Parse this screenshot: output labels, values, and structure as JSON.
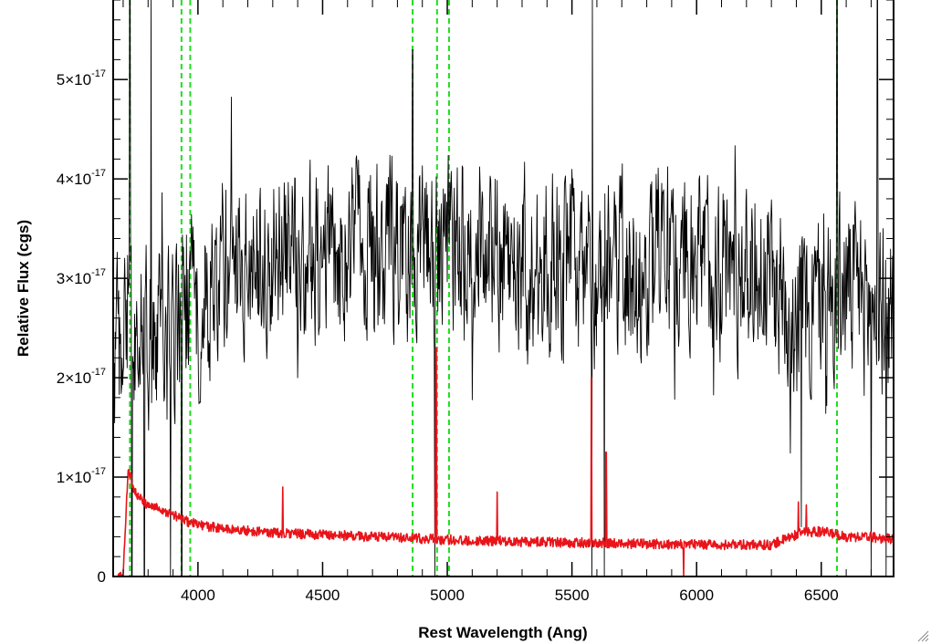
{
  "chart_data": {
    "type": "line",
    "title": "",
    "xlabel": "Rest Wavelength (Ang)",
    "ylabel": "Relative Flux (cgs)",
    "xlim": [
      3660,
      6790
    ],
    "ylim": [
      0,
      5.8e-17
    ],
    "x_ticks": [
      4000,
      4500,
      5000,
      5500,
      6000,
      6500
    ],
    "x_tick_labels": [
      "4000",
      "4500",
      "5000",
      "5500",
      "6000",
      "6500"
    ],
    "y_ticks": [
      {
        "value": 0,
        "label": "0"
      },
      {
        "value": 1e-17,
        "mantissa": "1×10",
        "exponent": "-17"
      },
      {
        "value": 2e-17,
        "mantissa": "2×10",
        "exponent": "-17"
      },
      {
        "value": 3e-17,
        "mantissa": "3×10",
        "exponent": "-17"
      },
      {
        "value": 4e-17,
        "mantissa": "4×10",
        "exponent": "-17"
      },
      {
        "value": 5e-17,
        "mantissa": "5×10",
        "exponent": "-17"
      }
    ],
    "grid": false,
    "legend": "none",
    "marked_lines": [
      3727,
      3934,
      3969,
      4861,
      4959,
      5007,
      6563
    ],
    "series": [
      {
        "role": "spectrum",
        "color": "#000000",
        "style": "solid",
        "x": [
          3660,
          3700,
          3740,
          3780,
          3820,
          3860,
          3900,
          3940,
          3980,
          4000,
          4100,
          4200,
          4300,
          4400,
          4500,
          4600,
          4700,
          4800,
          4860,
          4900,
          4950,
          5000,
          5100,
          5200,
          5300,
          5400,
          5500,
          5580,
          5600,
          5640,
          5700,
          5800,
          5900,
          6000,
          6100,
          6200,
          6300,
          6400,
          6450,
          6500,
          6550,
          6600,
          6650,
          6700,
          6750,
          6790
        ],
        "values": [
          2e-17,
          2.4e-17,
          2.2e-17,
          2.3e-17,
          2.4e-17,
          2.5e-17,
          2.4e-17,
          2.6e-17,
          2.6e-17,
          2.8e-17,
          3.1e-17,
          3.1e-17,
          3.2e-17,
          3.2e-17,
          3.3e-17,
          3.3e-17,
          3.3e-17,
          3.3e-17,
          3.1e-17,
          3.3e-17,
          3.3e-17,
          3.3e-17,
          3.3e-17,
          3.3e-17,
          3.2e-17,
          3.2e-17,
          3.1e-17,
          3e-17,
          3e-17,
          3.1e-17,
          3.1e-17,
          3.2e-17,
          3.2e-17,
          3.2e-17,
          3.2e-17,
          3.1e-17,
          3e-17,
          2.7e-17,
          2.7e-17,
          2.7e-17,
          2.8e-17,
          2.9e-17,
          2.8e-17,
          2.7e-17,
          2.7e-17,
          2.7e-17
        ],
        "noise_scale": 9e-18,
        "spikes": [
          {
            "x": 3727,
            "y": 5.8e-17
          },
          {
            "x": 3812,
            "y": 5.8e-17
          },
          {
            "x": 4861,
            "y": 5.3e-17
          },
          {
            "x": 5582,
            "y": 5.8e-17
          },
          {
            "x": 6563,
            "y": 5.8e-17
          },
          {
            "x": 6725,
            "y": 5.8e-17
          }
        ],
        "dips": [
          {
            "x": 3735,
            "y": 0
          },
          {
            "x": 3785,
            "y": 0
          },
          {
            "x": 3890,
            "y": 0
          },
          {
            "x": 3935,
            "y": 0
          },
          {
            "x": 4950,
            "y": 0
          },
          {
            "x": 5580,
            "y": 0
          },
          {
            "x": 5630,
            "y": 0
          },
          {
            "x": 6420,
            "y": 5e-18
          },
          {
            "x": 6700,
            "y": 0
          },
          {
            "x": 6760,
            "y": 0
          }
        ]
      },
      {
        "role": "error",
        "color": "#e8141a",
        "style": "solid",
        "x": [
          3680,
          3700,
          3720,
          3740,
          3760,
          3800,
          3850,
          3900,
          3950,
          4000,
          4100,
          4200,
          4300,
          4400,
          4500,
          4600,
          4700,
          4800,
          4900,
          5000,
          5100,
          5200,
          5300,
          5400,
          5500,
          5600,
          5700,
          5800,
          5900,
          6000,
          6100,
          6200,
          6300,
          6400,
          6450,
          6500,
          6550,
          6600,
          6650,
          6700,
          6750,
          6790
        ],
        "values": [
          0,
          0,
          1.1e-17,
          9e-18,
          8e-18,
          7.2e-18,
          6.8e-18,
          6.2e-18,
          5.6e-18,
          5.2e-18,
          4.8e-18,
          4.6e-18,
          4.4e-18,
          4.3e-18,
          4.2e-18,
          4.1e-18,
          4e-18,
          3.9e-18,
          3.8e-18,
          3.7e-18,
          3.6e-18,
          3.6e-18,
          3.5e-18,
          3.5e-18,
          3.4e-18,
          3.4e-18,
          3.3e-18,
          3.3e-18,
          3.2e-18,
          3.2e-18,
          3.2e-18,
          3.2e-18,
          3.2e-18,
          4.2e-18,
          4.5e-18,
          4.5e-18,
          4.3e-18,
          4e-18,
          4e-18,
          4e-18,
          3.8e-18,
          3.8e-18
        ],
        "noise_scale": 5e-19,
        "spikes": [
          {
            "x": 4340,
            "y": 9e-18
          },
          {
            "x": 4955,
            "y": 2.3e-17
          },
          {
            "x": 5200,
            "y": 8.5e-18
          },
          {
            "x": 5578,
            "y": 2e-17
          },
          {
            "x": 5637,
            "y": 1.25e-17
          },
          {
            "x": 6408,
            "y": 7.5e-18
          },
          {
            "x": 6440,
            "y": 7.2e-18
          }
        ],
        "dips": [
          {
            "x": 5948,
            "y": 0
          }
        ]
      }
    ]
  },
  "colors": {
    "axis": "#000000",
    "marker_line": "#22dd22"
  }
}
